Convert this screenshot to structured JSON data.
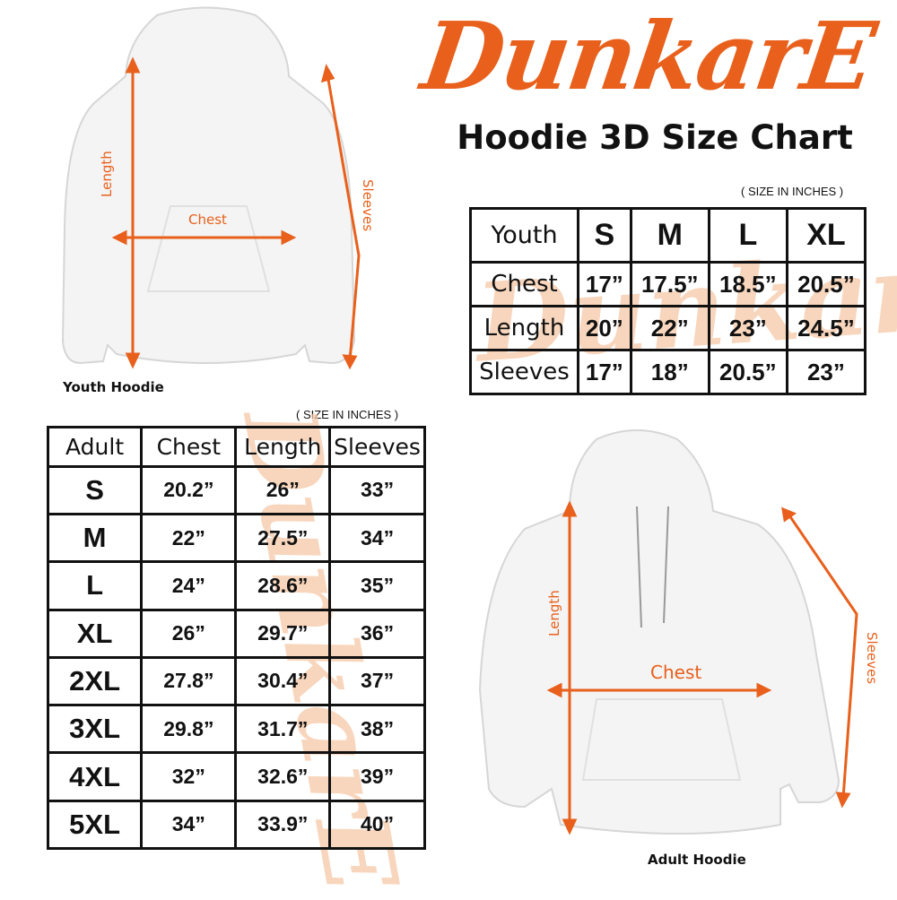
{
  "brand": {
    "logo_text": "DunkarE",
    "accent_color": "#e8601c",
    "watermark_color": "#f6c9a8"
  },
  "title": "Hoodie 3D Size Chart",
  "youth": {
    "unit_note": "( SIZE IN INCHES )",
    "headers": [
      "Youth",
      "S",
      "M",
      "L",
      "XL"
    ],
    "rows": [
      {
        "label": "Chest",
        "values": [
          "17”",
          "17.5”",
          "18.5”",
          "20.5”"
        ]
      },
      {
        "label": "Length",
        "values": [
          "20”",
          "22”",
          "23”",
          "24.5”"
        ]
      },
      {
        "label": "Sleeves",
        "values": [
          "17”",
          "18”",
          "20.5”",
          "23”"
        ]
      }
    ],
    "image": {
      "caption": "Youth Hoodie",
      "length_label": "Length",
      "chest_label": "Chest",
      "sleeves_label": "Sleeves"
    }
  },
  "adult": {
    "unit_note": "( SIZE IN INCHES )",
    "headers": [
      "Adult",
      "Chest",
      "Length",
      "Sleeves"
    ],
    "rows": [
      {
        "size": "S",
        "values": [
          "20.2”",
          "26”",
          "33”"
        ]
      },
      {
        "size": "M",
        "values": [
          "22”",
          "27.5”",
          "34”"
        ]
      },
      {
        "size": "L",
        "values": [
          "24”",
          "28.6”",
          "35”"
        ]
      },
      {
        "size": "XL",
        "values": [
          "26”",
          "29.7”",
          "36”"
        ]
      },
      {
        "size": "2XL",
        "values": [
          "27.8”",
          "30.4”",
          "37”"
        ]
      },
      {
        "size": "3XL",
        "values": [
          "29.8”",
          "31.7”",
          "38”"
        ]
      },
      {
        "size": "4XL",
        "values": [
          "32”",
          "32.6”",
          "39”"
        ]
      },
      {
        "size": "5XL",
        "values": [
          "34”",
          "33.9”",
          "40”"
        ]
      }
    ],
    "image": {
      "caption": "Adult Hoodie",
      "length_label": "Length",
      "chest_label": "Chest",
      "sleeves_label": "Sleeves"
    }
  }
}
